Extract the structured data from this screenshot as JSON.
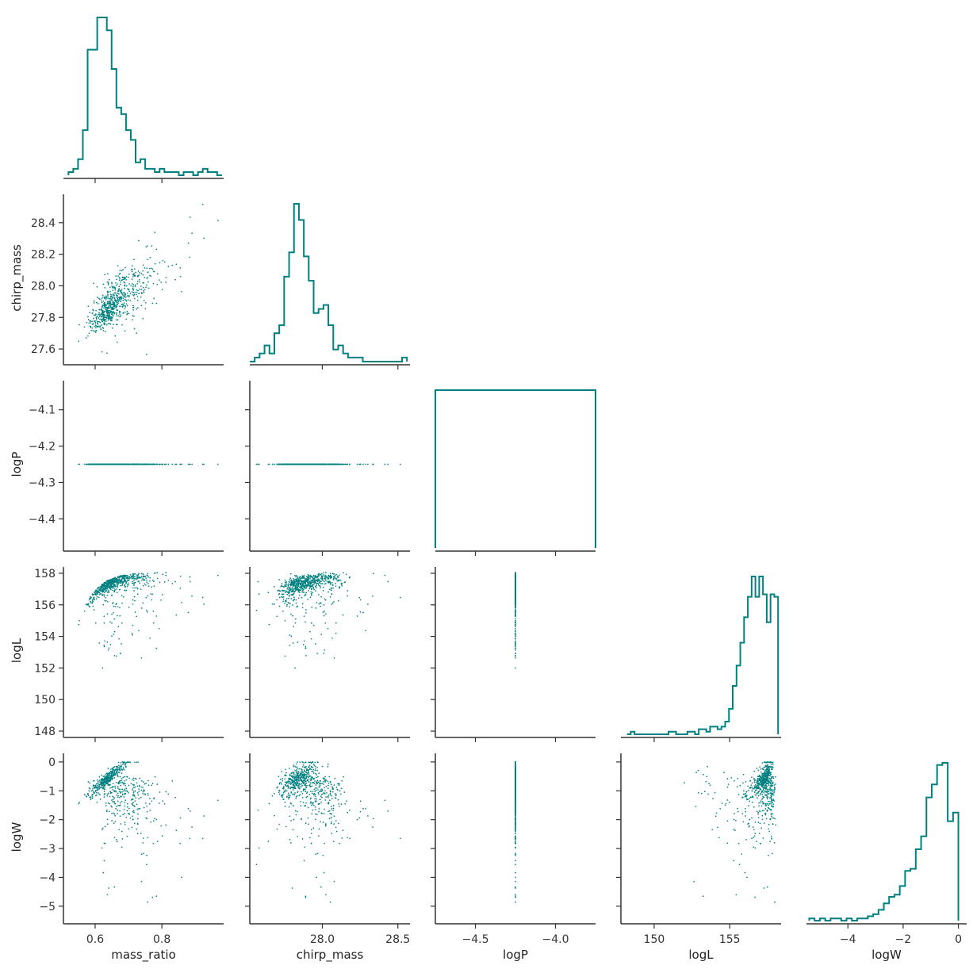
{
  "chart_data": {
    "type": "corner",
    "color": "#008080",
    "variables": [
      "mass_ratio",
      "chirp_mass",
      "logP",
      "logL",
      "logW"
    ],
    "axes": {
      "mass_ratio": {
        "label": "mass_ratio",
        "range": [
          0.505,
          0.985
        ],
        "ticks": [
          {
            "v": 0.6,
            "t": "0.6"
          },
          {
            "v": 0.8,
            "t": "0.8"
          }
        ]
      },
      "chirp_mass": {
        "label": "chirp_mass",
        "range": [
          27.52,
          28.58
        ],
        "ticks": [
          {
            "v": 27.6,
            "t": "27.6"
          },
          {
            "v": 27.8,
            "t": "27.8"
          },
          {
            "v": 28.0,
            "t": "28.0"
          },
          {
            "v": 28.2,
            "t": "28.2"
          },
          {
            "v": 28.4,
            "t": "28.4"
          },
          {
            "v": 28.5,
            "t": "28.5"
          }
        ],
        "xticks": [
          28.0,
          28.5
        ],
        "yticks": [
          27.6,
          27.8,
          28.0,
          28.2,
          28.4
        ]
      },
      "logP": {
        "label": "logP",
        "range": [
          -4.75,
          -3.75
        ],
        "yrange": [
          -4.48,
          -4.02
        ],
        "xticks": [
          {
            "v": -4.5,
            "t": "−4.5"
          },
          {
            "v": -4.0,
            "t": "−4.0"
          }
        ],
        "yticks": [
          {
            "v": -4.1,
            "t": "−4.1"
          },
          {
            "v": -4.2,
            "t": "−4.2"
          },
          {
            "v": -4.3,
            "t": "−4.3"
          },
          {
            "v": -4.4,
            "t": "−4.4"
          }
        ]
      },
      "logL": {
        "label": "logL",
        "range": [
          147.8,
          158.4
        ],
        "xticks": [
          {
            "v": 150,
            "t": "150"
          },
          {
            "v": 155,
            "t": "155"
          }
        ],
        "yticks": [
          {
            "v": 148,
            "t": "148"
          },
          {
            "v": 150,
            "t": "150"
          },
          {
            "v": 152,
            "t": "152"
          },
          {
            "v": 154,
            "t": "154"
          },
          {
            "v": 156,
            "t": "156"
          },
          {
            "v": 158,
            "t": "158"
          }
        ]
      },
      "logW": {
        "label": "logW",
        "range": [
          -5.5,
          0.3
        ],
        "xticks": [
          {
            "v": -4,
            "t": "−4"
          },
          {
            "v": -2,
            "t": "−2"
          },
          {
            "v": 0,
            "t": "0"
          }
        ],
        "yticks": [
          {
            "v": 0,
            "t": "0"
          },
          {
            "v": -1,
            "t": "−1"
          },
          {
            "v": -2,
            "t": "−2"
          },
          {
            "v": -3,
            "t": "−3"
          },
          {
            "v": -4,
            "t": "−4"
          },
          {
            "v": -5,
            "t": "−5"
          }
        ]
      }
    },
    "histograms": {
      "mass_ratio": {
        "bins_range": [
          0.52,
          0.98
        ],
        "counts": [
          1,
          2,
          5,
          14,
          39,
          39,
          49,
          49,
          45,
          33,
          21,
          19,
          14,
          11,
          4,
          5,
          2,
          2,
          1,
          2,
          1,
          1,
          1,
          0,
          1,
          1,
          0,
          1,
          2,
          1,
          1,
          0
        ]
      },
      "chirp_mass": {
        "bins_range": [
          27.52,
          28.56
        ],
        "counts": [
          0,
          1,
          2,
          4,
          2,
          7,
          9,
          21,
          27,
          39,
          35,
          26,
          20,
          12,
          13,
          14,
          9,
          3,
          4,
          2,
          1,
          1,
          1,
          0,
          0,
          0,
          0,
          0,
          0,
          0,
          0,
          1
        ]
      },
      "logP": {
        "bins_range": [
          -4.75,
          -3.75
        ],
        "counts": [
          1
        ]
      },
      "logL": {
        "bins_range": [
          148.2,
          158.2
        ],
        "counts": [
          0,
          1,
          0,
          0,
          0,
          0,
          0,
          0,
          0,
          0,
          0,
          1,
          1,
          0,
          0,
          0,
          1,
          1,
          0,
          2,
          2,
          1,
          3,
          3,
          2,
          3,
          5,
          10,
          19,
          27,
          36,
          46,
          54,
          62,
          54,
          62,
          55,
          44,
          55,
          54
        ]
      },
      "logW": {
        "bins_range": [
          -5.4,
          0.0
        ],
        "counts": [
          1,
          0,
          1,
          0,
          1,
          1,
          0,
          1,
          0,
          1,
          1,
          2,
          3,
          5,
          8,
          11,
          12,
          16,
          23,
          24,
          33,
          39,
          57,
          63,
          72,
          73,
          46,
          50
        ]
      }
    },
    "grid": false,
    "legend": "none"
  }
}
